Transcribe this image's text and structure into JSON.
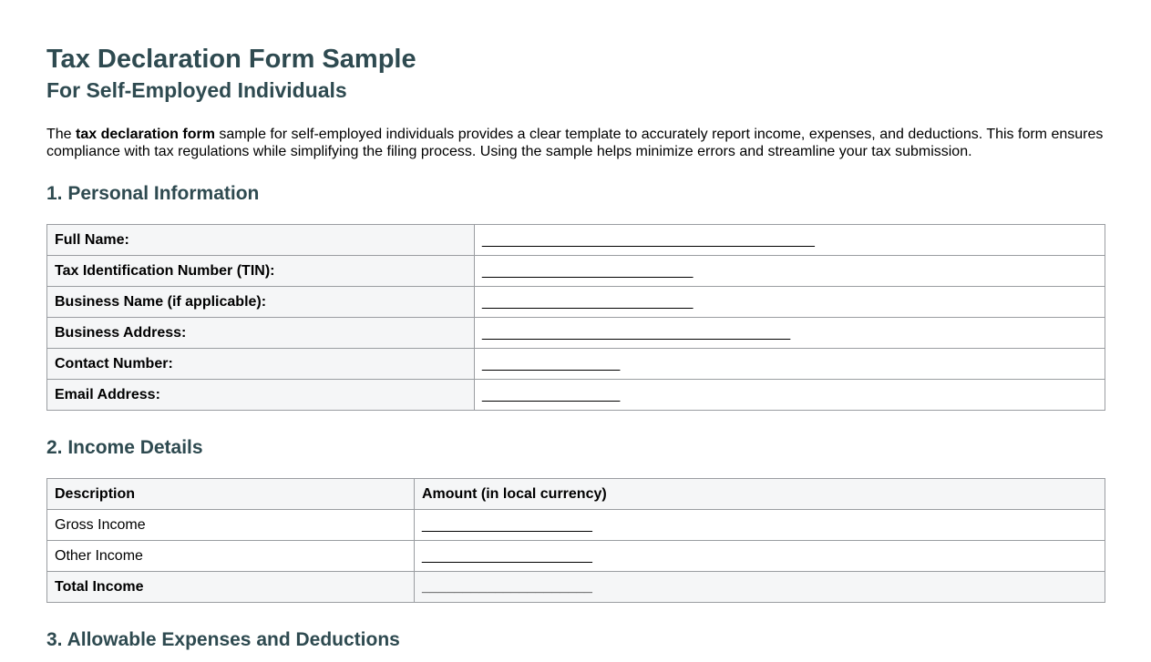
{
  "document": {
    "title": "Tax Declaration Form Sample",
    "subtitle": "For Self-Employed Individuals",
    "intro_before": "The ",
    "intro_bold": "tax declaration form",
    "intro_after": " sample for self-employed individuals provides a clear template to accurately report income, expenses, and deductions. This form ensures compliance with tax regulations while simplifying the filing process. Using the sample helps minimize errors and streamline your tax submission."
  },
  "personal_section": {
    "heading": "1. Personal Information",
    "fields": [
      {
        "label": "Full Name:",
        "blank": "_________________________________________"
      },
      {
        "label": "Tax Identification Number (TIN):",
        "blank": "__________________________"
      },
      {
        "label": "Business Name (if applicable):",
        "blank": "__________________________"
      },
      {
        "label": "Business Address:",
        "blank": "______________________________________"
      },
      {
        "label": "Contact Number:",
        "blank": "_________________"
      },
      {
        "label": "Email Address:",
        "blank": "_________________"
      }
    ]
  },
  "income_section": {
    "heading": "2. Income Details",
    "columns": {
      "description": "Description",
      "amount": "Amount (in local currency)"
    },
    "rows": [
      {
        "label": "Gross Income",
        "blank": "_____________________"
      },
      {
        "label": "Other Income",
        "blank": "_____________________"
      },
      {
        "label": "Total Income",
        "blank": "_____________________"
      }
    ]
  },
  "expenses_section": {
    "heading": "3. Allowable Expenses and Deductions"
  },
  "colors": {
    "heading_text": "#2e4a50",
    "body_text": "#000000",
    "table_border": "#9a9da1",
    "shaded_cell": "#f5f6f7",
    "page_background": "#ffffff"
  }
}
